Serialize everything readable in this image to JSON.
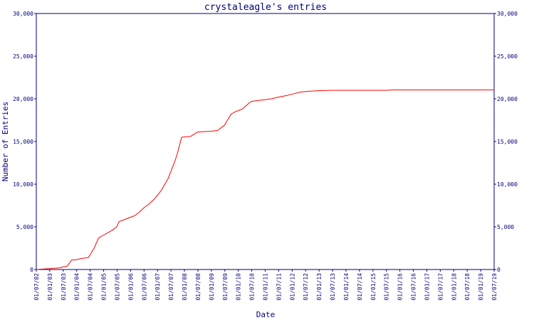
{
  "chart_data": {
    "type": "line",
    "title": "crystaleagle's entries",
    "xlabel": "Date",
    "ylabel": "Number of Entries",
    "ylim": [
      0,
      30000
    ],
    "yticks": [
      0,
      5000,
      10000,
      15000,
      20000,
      25000,
      30000
    ],
    "ytick_labels": [
      "0",
      "5,000",
      "10,000",
      "15,000",
      "20,000",
      "25,000",
      "30,000"
    ],
    "xlim": [
      "2002-01-07",
      "2019-01-07"
    ],
    "xtick_labels": [
      "01/07/02",
      "01/01/03",
      "01/07/03",
      "01/01/04",
      "01/07/04",
      "01/01/05",
      "01/07/05",
      "01/01/06",
      "01/07/06",
      "01/01/07",
      "01/07/07",
      "01/01/08",
      "01/07/08",
      "01/01/09",
      "01/07/09",
      "01/01/10",
      "01/07/10",
      "01/01/11",
      "01/07/11",
      "01/01/12",
      "01/07/12",
      "01/01/13",
      "01/07/13",
      "01/01/14",
      "01/07/14",
      "01/01/15",
      "01/07/15",
      "01/01/16",
      "01/07/16",
      "01/01/17",
      "01/07/17",
      "01/01/18",
      "01/07/18",
      "01/01/19",
      "01/07/19"
    ],
    "line_color": "#ff0000",
    "axis_color": "#000080",
    "grid": false,
    "series": [
      {
        "x": [
          "2002-01-07",
          "2002-07-01",
          "2002-09-01",
          "2002-12-01",
          "2003-01-01",
          "2003-02-01",
          "2003-03-01",
          "2003-05-01",
          "2003-07-01",
          "2003-09-15",
          "2003-12-15",
          "2004-03-01",
          "2004-05-01",
          "2004-07-01",
          "2004-09-01",
          "2004-11-01",
          "2005-01-01",
          "2005-02-01",
          "2005-04-01",
          "2005-06-01",
          "2005-09-01",
          "2005-11-01",
          "2006-01-01",
          "2006-04-01",
          "2006-06-01",
          "2006-09-01",
          "2006-12-01",
          "2007-03-01",
          "2007-04-01",
          "2007-06-01",
          "2007-10-01",
          "2008-01-01",
          "2008-03-01",
          "2008-07-01",
          "2008-10-01",
          "2009-01-01",
          "2009-04-01",
          "2009-06-01",
          "2009-07-01",
          "2009-09-01",
          "2009-12-01",
          "2010-01-01",
          "2010-04-01",
          "2010-07-01",
          "2010-10-01",
          "2011-01-01",
          "2011-05-01",
          "2011-08-01",
          "2011-11-01",
          "2012-03-01",
          "2012-07-01",
          "2013-01-01",
          "2014-01-01",
          "2015-01-01",
          "2015-04-01",
          "2016-01-01",
          "2017-01-01",
          "2018-01-01",
          "2019-01-07"
        ],
        "y": [
          0,
          100,
          150,
          200,
          300,
          350,
          400,
          1100,
          1150,
          1300,
          1400,
          2500,
          3700,
          4000,
          4300,
          4600,
          5000,
          5600,
          5800,
          6000,
          6300,
          6700,
          7200,
          7800,
          8300,
          9300,
          10700,
          12700,
          13500,
          15500,
          15600,
          16100,
          16150,
          16200,
          16300,
          16900,
          18200,
          18500,
          18600,
          18800,
          19500,
          19700,
          19800,
          19900,
          20000,
          20200,
          20400,
          20600,
          20800,
          20900,
          20950,
          21000,
          21000,
          21000,
          21050,
          21050,
          21050,
          21050,
          21050
        ]
      }
    ]
  }
}
